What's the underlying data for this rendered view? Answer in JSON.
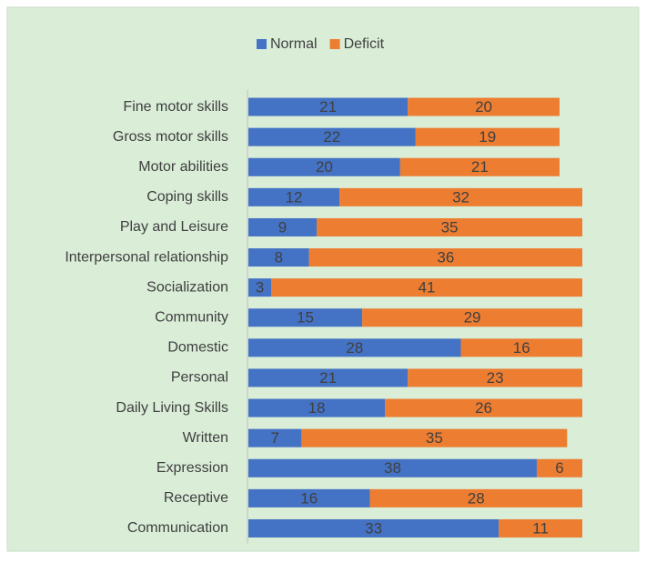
{
  "chart_data": {
    "type": "stacked-bar-horizontal",
    "categories": [
      "Fine motor skills",
      "Gross motor skills",
      "Motor abilities",
      "Coping skills",
      "Play and Leisure",
      "Interpersonal relationship",
      "Socialization",
      "Community",
      "Domestic",
      "Personal",
      "Daily Living Skills",
      "Written",
      "Expression",
      "Receptive",
      "Communication"
    ],
    "series": [
      {
        "name": "Normal",
        "color": "#4472c4",
        "values": [
          21,
          22,
          20,
          12,
          9,
          8,
          3,
          15,
          28,
          21,
          18,
          7,
          38,
          16,
          33
        ]
      },
      {
        "name": "Deficit",
        "color": "#ed7d31",
        "values": [
          20,
          19,
          21,
          32,
          35,
          36,
          41,
          29,
          16,
          23,
          26,
          35,
          6,
          28,
          11
        ]
      }
    ],
    "xlim": [
      0,
      44
    ],
    "legend": "top"
  }
}
